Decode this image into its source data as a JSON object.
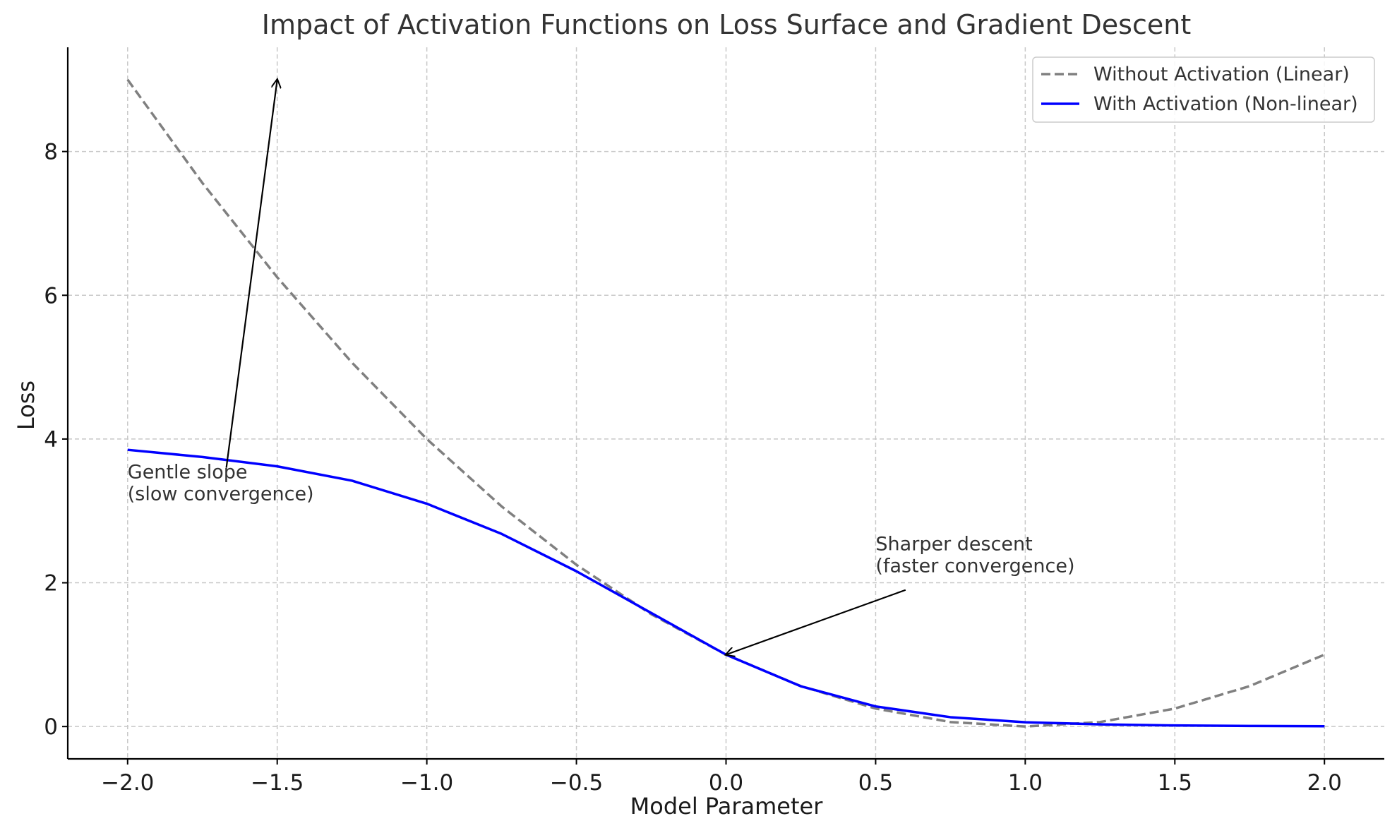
{
  "chart_data": {
    "type": "line",
    "title": "Impact of Activation Functions on Loss Surface and Gradient Descent",
    "xlabel": "Model Parameter",
    "ylabel": "Loss",
    "xlim": [
      -2.2,
      2.2
    ],
    "ylim": [
      -0.45,
      9.45
    ],
    "xticks": [
      -2.0,
      -1.5,
      -1.0,
      -0.5,
      0.0,
      0.5,
      1.0,
      1.5,
      2.0
    ],
    "xtick_labels": [
      "−2.0",
      "−1.5",
      "−1.0",
      "−0.5",
      "0.0",
      "0.5",
      "1.0",
      "1.5",
      "2.0"
    ],
    "yticks": [
      0,
      2,
      4,
      6,
      8
    ],
    "ytick_labels": [
      "0",
      "2",
      "4",
      "6",
      "8"
    ],
    "grid": true,
    "legend_position": "top-right",
    "series": [
      {
        "name": "Without Activation (Linear)",
        "color": "#808080",
        "style": "dashed",
        "x": [
          -2.0,
          -1.75,
          -1.5,
          -1.25,
          -1.0,
          -0.75,
          -0.5,
          -0.25,
          0.0,
          0.25,
          0.5,
          0.75,
          1.0,
          1.25,
          1.5,
          1.75,
          2.0
        ],
        "y": [
          9.0,
          7.5625,
          6.25,
          5.0625,
          4.0,
          3.0625,
          2.25,
          1.5625,
          1.0,
          0.5625,
          0.25,
          0.0625,
          0.0,
          0.0625,
          0.25,
          0.5625,
          1.0
        ]
      },
      {
        "name": "With Activation (Non-linear)",
        "color": "#0000ff",
        "style": "solid",
        "x": [
          -2.0,
          -1.75,
          -1.5,
          -1.25,
          -1.0,
          -0.75,
          -0.5,
          -0.25,
          0.0,
          0.25,
          0.5,
          0.75,
          1.0,
          1.25,
          1.5,
          1.75,
          2.0
        ],
        "y": [
          3.85,
          3.75,
          3.62,
          3.42,
          3.1,
          2.68,
          2.16,
          1.58,
          1.0,
          0.56,
          0.28,
          0.13,
          0.06,
          0.03,
          0.015,
          0.008,
          0.004
        ]
      }
    ],
    "annotations": [
      {
        "text_lines": [
          "Gentle slope",
          "(slow convergence)"
        ],
        "text_x": -2.0,
        "text_y": 3.15,
        "arrow_from": [
          -1.67,
          3.6
        ],
        "arrow_to": [
          -1.5,
          9.0
        ]
      },
      {
        "text_lines": [
          "Sharper descent",
          "(faster convergence)"
        ],
        "text_x": 0.5,
        "text_y": 2.15,
        "arrow_from": [
          0.6,
          1.9
        ],
        "arrow_to": [
          0.0,
          1.0
        ]
      }
    ]
  }
}
